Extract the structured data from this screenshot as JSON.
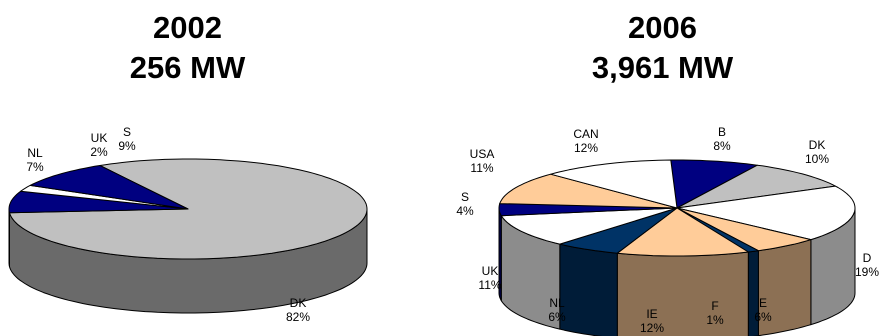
{
  "chart_data": [
    {
      "type": "pie",
      "title_line1": "2002",
      "title_line2": "256 MW",
      "slices": [
        {
          "label": "DK",
          "value": 82,
          "value_text": "82%",
          "color": "#c0c0c0"
        },
        {
          "label": "NL",
          "value": 7,
          "value_text": "7%",
          "color": "#000080"
        },
        {
          "label": "UK",
          "value": 2,
          "value_text": "2%",
          "color": "#ffffff"
        },
        {
          "label": "S",
          "value": 9,
          "value_text": "9%",
          "color": "#000080"
        }
      ]
    },
    {
      "type": "pie",
      "title_line1": "2006",
      "title_line2": "3,961 MW",
      "slices": [
        {
          "label": "B",
          "value": 8,
          "value_text": "8%",
          "color": "#000080"
        },
        {
          "label": "DK",
          "value": 10,
          "value_text": "10%",
          "color": "#c0c0c0"
        },
        {
          "label": "D",
          "value": 19,
          "value_text": "19%",
          "color": "#ffffff"
        },
        {
          "label": "E",
          "value": 6,
          "value_text": "6%",
          "color": "#ffcc99"
        },
        {
          "label": "F",
          "value": 1,
          "value_text": "1%",
          "color": "#003366"
        },
        {
          "label": "IE",
          "value": 12,
          "value_text": "12%",
          "color": "#ffcc99"
        },
        {
          "label": "NL",
          "value": 6,
          "value_text": "6%",
          "color": "#003366"
        },
        {
          "label": "UK",
          "value": 11,
          "value_text": "11%",
          "color": "#ffffff"
        },
        {
          "label": "S",
          "value": 4,
          "value_text": "4%",
          "color": "#000080"
        },
        {
          "label": "USA",
          "value": 11,
          "value_text": "11%",
          "color": "#ffcc99"
        },
        {
          "label": "CAN",
          "value": 12,
          "value_text": "12%",
          "color": "#ffffff"
        }
      ]
    }
  ]
}
